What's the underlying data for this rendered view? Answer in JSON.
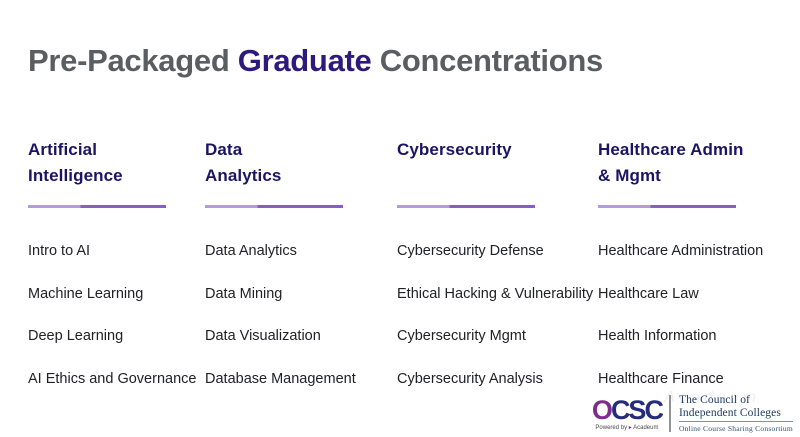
{
  "title": {
    "part1": "Pre-Packaged ",
    "part2": "Graduate",
    "part3": " Concentrations"
  },
  "colors": {
    "title_gray": "#5b5e61",
    "title_accent_indigo": "#2c1a7d",
    "heading_indigo": "#1b1464",
    "underline_purple_dark": "#8a5dc2",
    "underline_purple_light": "#b39cd9",
    "item_text": "#202124",
    "ocsc_purple": "#7e2b8e",
    "ocsc_navy": "#252d7a",
    "cic_navy": "#203a64",
    "background": "#ffffff"
  },
  "columns": [
    {
      "heading": "Artificial Intelligence",
      "heading_line1": "Artificial",
      "heading_line2": "Intelligence",
      "items": [
        "Intro to AI",
        "Machine Learning",
        "Deep Learning",
        "AI Ethics and Governance"
      ]
    },
    {
      "heading": "Data Analytics",
      "heading_line1": "Data",
      "heading_line2": "Analytics",
      "items": [
        "Data Analytics",
        "Data Mining",
        "Data Visualization",
        "Database Management"
      ]
    },
    {
      "heading": "Cybersecurity",
      "heading_line1": "Cybersecurity",
      "heading_line2": "",
      "items": [
        "Cybersecurity Defense",
        "Ethical Hacking & Vulnerability",
        "Cybersecurity Mgmt",
        "Cybersecurity Analysis"
      ]
    },
    {
      "heading": "Healthcare Admin & Mgmt",
      "heading_line1": "Healthcare Admin",
      "heading_line2": "& Mgmt",
      "items": [
        "Healthcare Administration",
        "Healthcare Law",
        "Health Information",
        "Healthcare Finance"
      ]
    }
  ],
  "logo": {
    "acronym_first_letter": "O",
    "acronym_rest": "CSC",
    "powered_by": "Powered by",
    "powered_brand": "Acadeum",
    "org_line1": "The Council of",
    "org_line2": "Independent Colleges",
    "subtitle": "Online Course Sharing Consortium",
    "watermark": "Acadeum"
  }
}
